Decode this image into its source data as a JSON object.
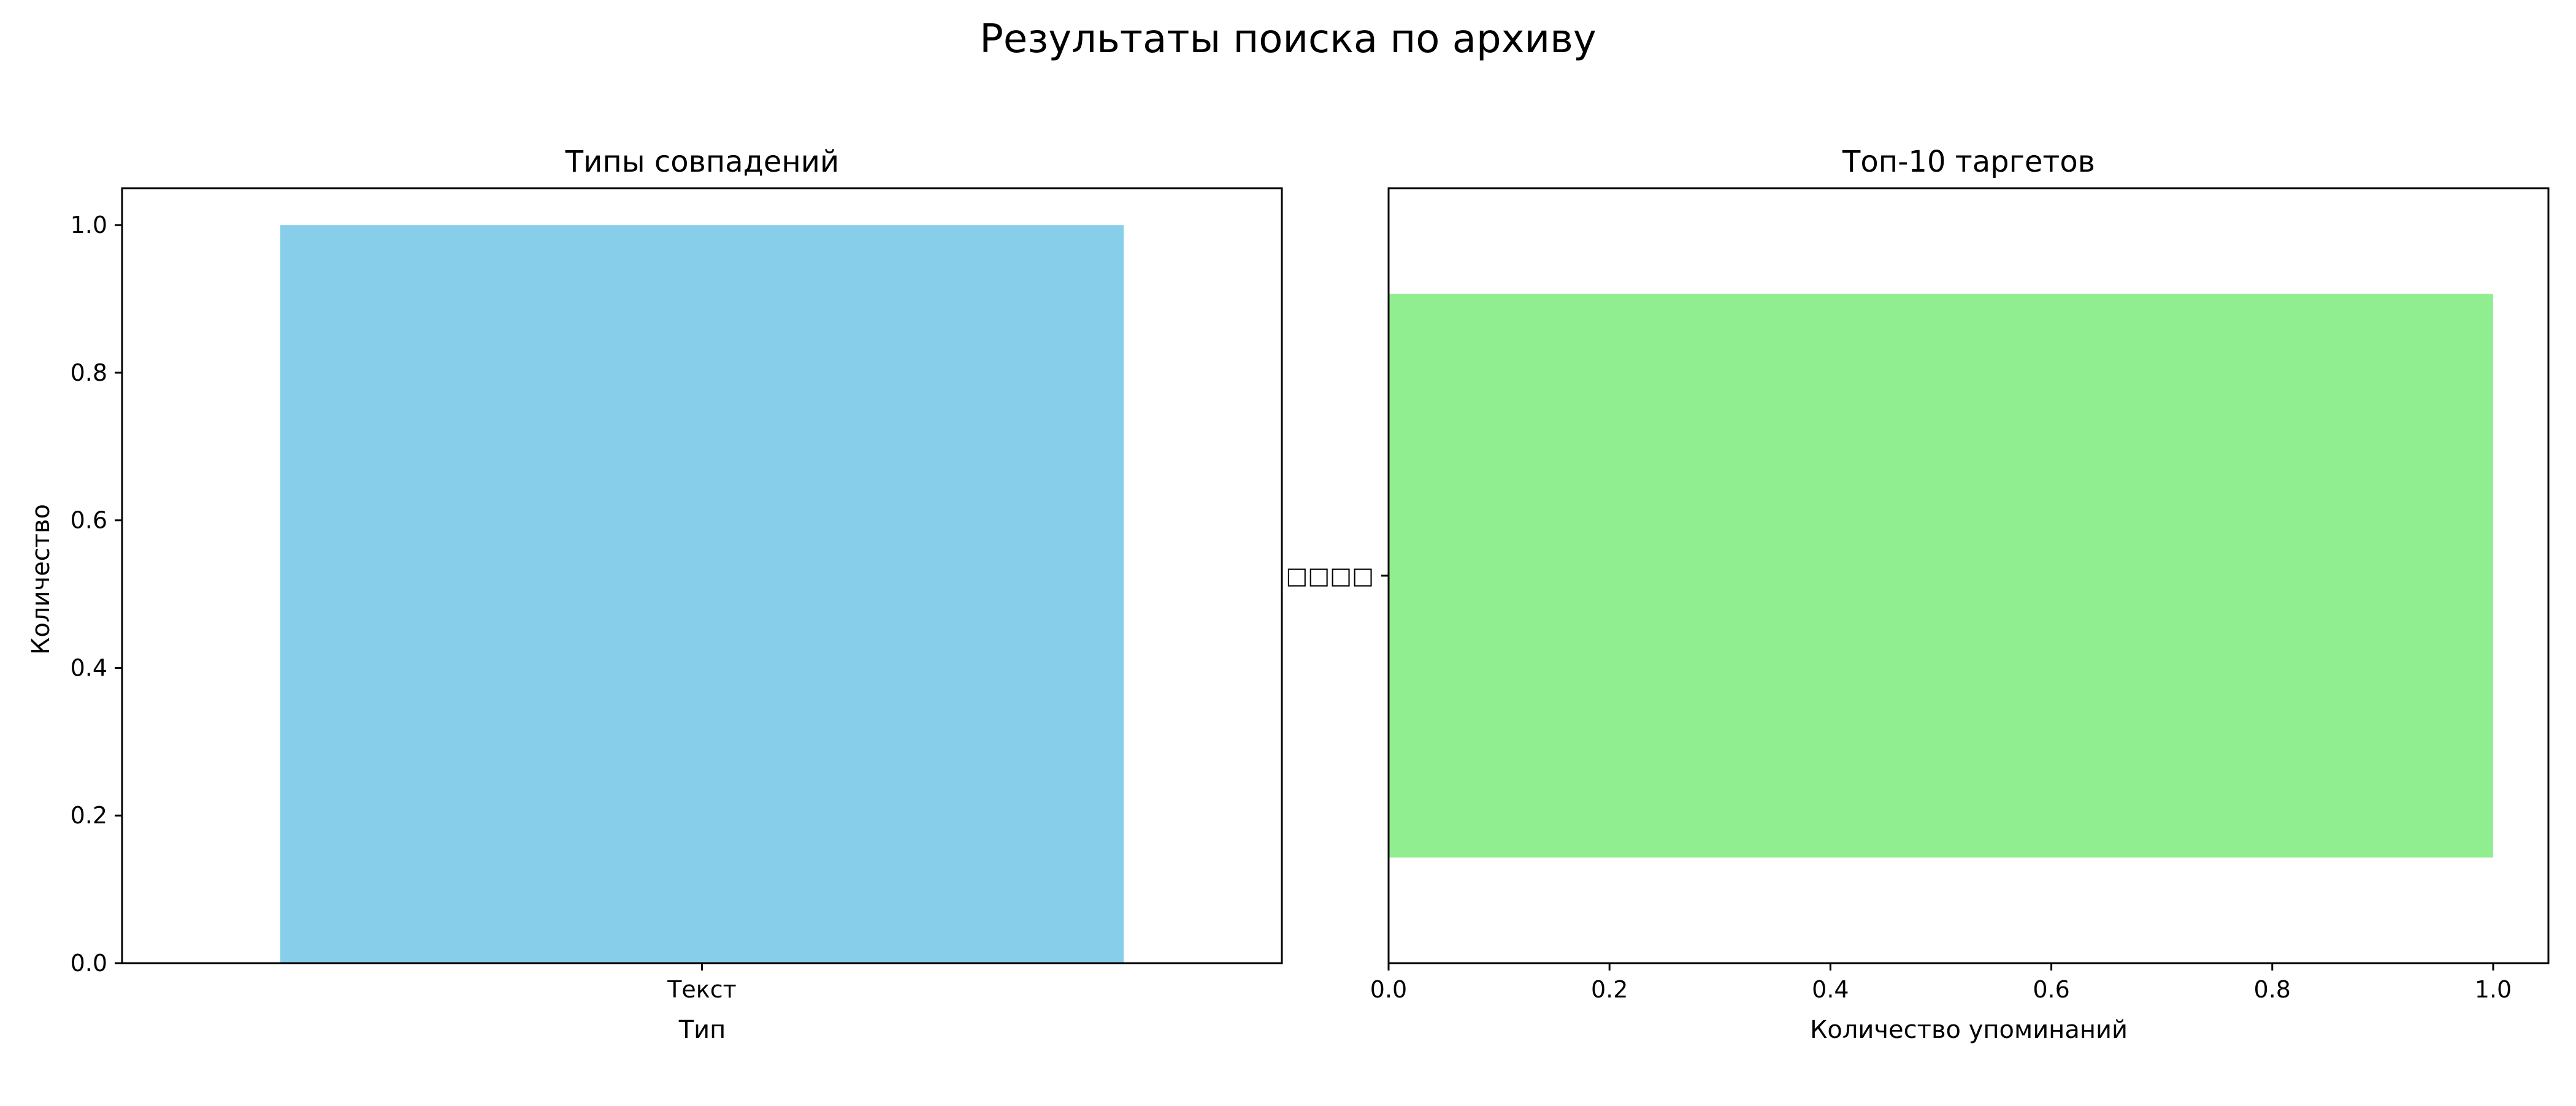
{
  "figure": {
    "suptitle": "Результаты поиска по архиву"
  },
  "chart_data": [
    {
      "type": "bar",
      "orientation": "vertical",
      "title": "Типы совпадений",
      "xlabel": "Тип",
      "ylabel": "Количество",
      "categories": [
        "Текст"
      ],
      "values": [
        1
      ],
      "ylim": [
        0,
        1.05
      ],
      "yticks": [
        0.0,
        0.2,
        0.4,
        0.6,
        0.8,
        1.0
      ],
      "ytick_labels": [
        "0.0",
        "0.2",
        "0.4",
        "0.6",
        "0.8",
        "1.0"
      ],
      "color": "#87ceeb",
      "grid": false,
      "legend": "none"
    },
    {
      "type": "bar",
      "orientation": "horizontal",
      "title": "Топ-10 таргетов",
      "xlabel": "Количество упоминаний",
      "ylabel": "",
      "categories": [
        "□□□□"
      ],
      "values": [
        1
      ],
      "xlim": [
        0,
        1.05
      ],
      "xticks": [
        0.0,
        0.2,
        0.4,
        0.6,
        0.8,
        1.0
      ],
      "xtick_labels": [
        "0.0",
        "0.2",
        "0.4",
        "0.6",
        "0.8",
        "1.0"
      ],
      "color": "#90ee90",
      "grid": false,
      "legend": "none"
    }
  ]
}
